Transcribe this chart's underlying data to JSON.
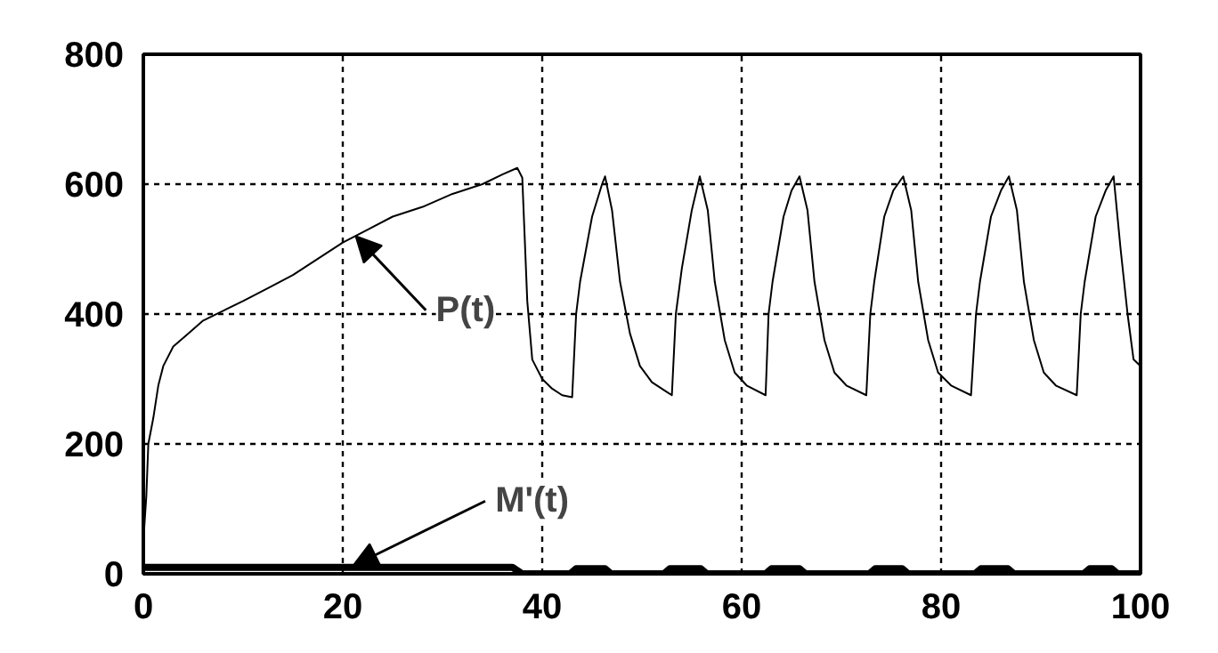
{
  "chart_data": {
    "type": "line",
    "series": [
      {
        "color": "#000000",
        "x": [
          0,
          0.3,
          0.5,
          1,
          1.5,
          2,
          3,
          4.5,
          6,
          8,
          10,
          12.5,
          15,
          17.5,
          20,
          22.5,
          25,
          28,
          31,
          34,
          36,
          37.5,
          38,
          38.5,
          39,
          40,
          41,
          42,
          43,
          43.4,
          43.8,
          45,
          46,
          46.3,
          47,
          47.8,
          48.8,
          49.8,
          51,
          52.5,
          53,
          53.4,
          54,
          55,
          55.8,
          56.6,
          57.3,
          58.3,
          59.3,
          60.5,
          62.4,
          62.7,
          63.1,
          64.2,
          65,
          65.8,
          66.6,
          67.3,
          68.3,
          69.3,
          70.5,
          72.5,
          72.9,
          73.3,
          74.3,
          75.2,
          76.2,
          77,
          77.7,
          78.7,
          79.7,
          81,
          83,
          83.5,
          83.9,
          85,
          86,
          86.8,
          87.6,
          88.3,
          89.3,
          90.3,
          91.5,
          93.6,
          94,
          94.4,
          95.5,
          96.5,
          97.3,
          98,
          98.7,
          99.3,
          100
        ],
        "values": [
          50,
          120,
          200,
          240,
          290,
          320,
          350,
          370,
          390,
          405,
          420,
          440,
          460,
          485,
          510,
          530,
          550,
          565,
          585,
          600,
          615,
          625,
          610,
          420,
          330,
          300,
          285,
          275,
          272,
          400,
          450,
          550,
          600,
          612,
          560,
          450,
          370,
          320,
          295,
          280,
          275,
          400,
          470,
          560,
          612,
          560,
          450,
          360,
          310,
          290,
          275,
          400,
          450,
          550,
          590,
          612,
          560,
          450,
          360,
          310,
          290,
          275,
          400,
          450,
          550,
          590,
          612,
          560,
          450,
          360,
          310,
          290,
          275,
          400,
          450,
          550,
          590,
          612,
          560,
          450,
          360,
          310,
          290,
          275,
          400,
          450,
          550,
          590,
          612,
          500,
          400,
          330,
          320
        ]
      },
      {
        "color": "#000000",
        "x": [
          0,
          37,
          38,
          42.8,
          43.4,
          46.3,
          46.9,
          52.2,
          52.8,
          55.9,
          56.5,
          62.4,
          63,
          65.8,
          66.4,
          72.8,
          73.4,
          76.1,
          76.7,
          83.4,
          84,
          86.7,
          87.3,
          94.3,
          94.9,
          97.1,
          97.7,
          100
        ],
        "values": [
          10,
          10,
          0,
          0,
          8,
          8,
          0,
          0,
          8,
          8,
          0,
          0,
          8,
          8,
          0,
          0,
          8,
          8,
          0,
          0,
          8,
          8,
          0,
          0,
          8,
          8,
          0,
          0
        ]
      }
    ],
    "xlim": [
      0,
      100
    ],
    "xticks": [
      0,
      20,
      40,
      60,
      80,
      100
    ],
    "ylim": [
      0,
      800
    ],
    "yticks": [
      0,
      200,
      400,
      600,
      800
    ],
    "grid": true,
    "line_style": "solid",
    "annotations": [
      {
        "text": "P(t)",
        "x": 21.3,
        "y": 520
      },
      {
        "text": "M'(t)",
        "x": 21,
        "y": 12
      }
    ]
  }
}
